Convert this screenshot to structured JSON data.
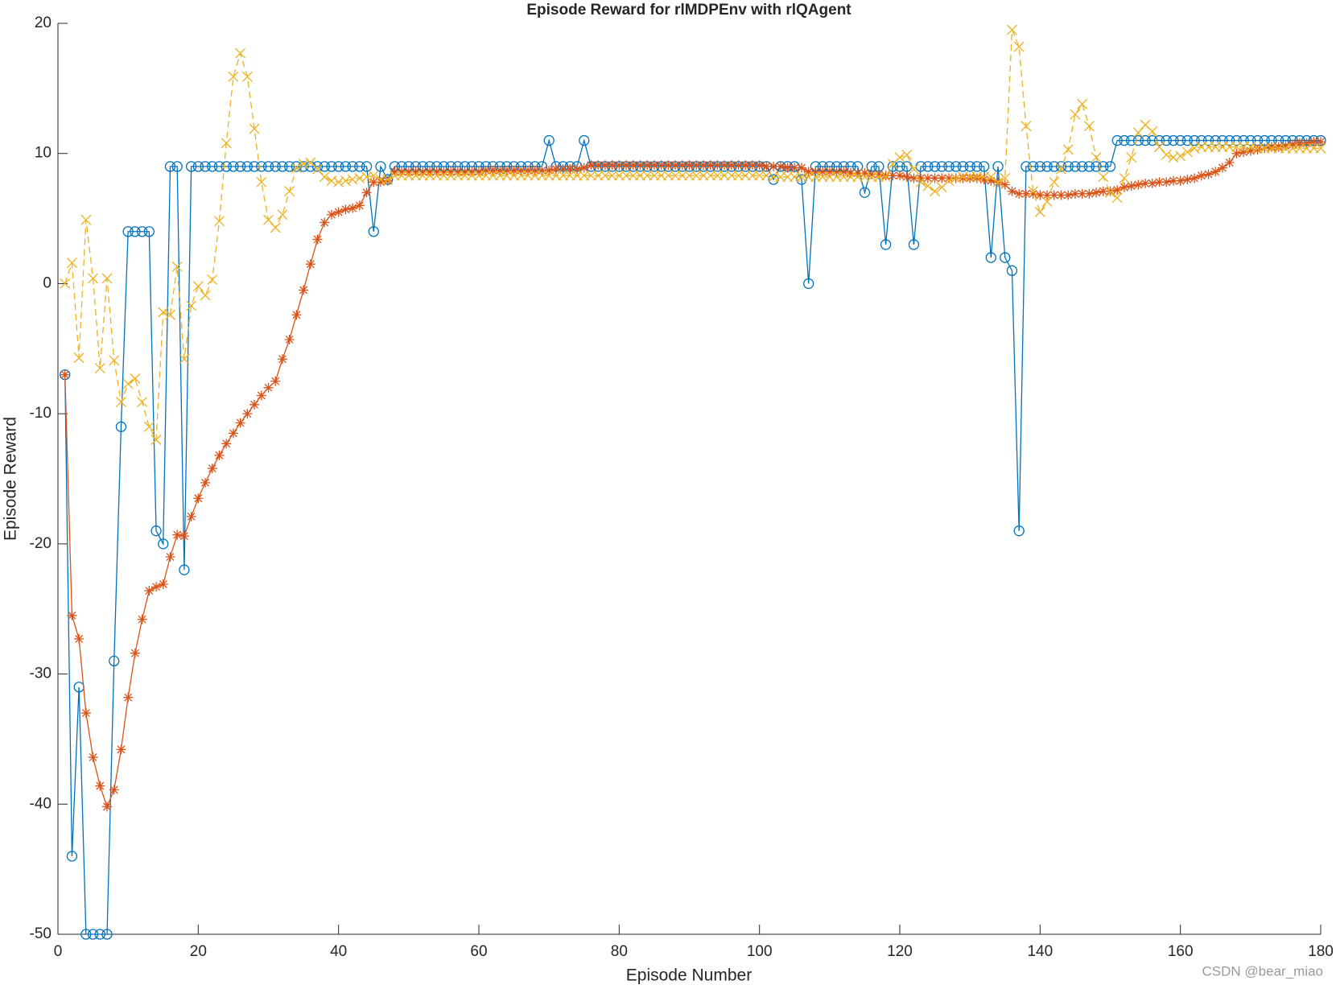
{
  "chart_data": {
    "type": "line",
    "title": "Episode Reward for rlMDPEnv with rlQAgent",
    "x_label": "Episode Number",
    "y_label": "Episode Reward",
    "watermark": "CSDN @bear_miao",
    "xlim": [
      0,
      180
    ],
    "xticks": [
      0,
      20,
      40,
      60,
      80,
      100,
      120,
      140,
      160,
      180
    ],
    "ylim": [
      -50,
      20
    ],
    "yticks": [
      -50,
      -40,
      -30,
      -20,
      -10,
      0,
      10,
      20
    ],
    "x": [
      1,
      2,
      3,
      4,
      5,
      6,
      7,
      8,
      9,
      10,
      11,
      12,
      13,
      14,
      15,
      16,
      17,
      18,
      19,
      20,
      21,
      22,
      23,
      24,
      25,
      26,
      27,
      28,
      29,
      30,
      31,
      32,
      33,
      34,
      35,
      36,
      37,
      38,
      39,
      40,
      41,
      42,
      43,
      44,
      45,
      46,
      47,
      48,
      49,
      50,
      51,
      52,
      53,
      54,
      55,
      56,
      57,
      58,
      59,
      60,
      61,
      62,
      63,
      64,
      65,
      66,
      67,
      68,
      69,
      70,
      71,
      72,
      73,
      74,
      75,
      76,
      77,
      78,
      79,
      80,
      81,
      82,
      83,
      84,
      85,
      86,
      87,
      88,
      89,
      90,
      91,
      92,
      93,
      94,
      95,
      96,
      97,
      98,
      99,
      100,
      101,
      102,
      103,
      104,
      105,
      106,
      107,
      108,
      109,
      110,
      111,
      112,
      113,
      114,
      115,
      116,
      117,
      118,
      119,
      120,
      121,
      122,
      123,
      124,
      125,
      126,
      127,
      128,
      129,
      130,
      131,
      132,
      133,
      134,
      135,
      136,
      137,
      138,
      139,
      140,
      141,
      142,
      143,
      144,
      145,
      146,
      147,
      148,
      149,
      150,
      151,
      152,
      153,
      154,
      155,
      156,
      157,
      158,
      159,
      160,
      161,
      162,
      163,
      164,
      165,
      166,
      167,
      168,
      169,
      170,
      171,
      172,
      173,
      174,
      175,
      176,
      177,
      178,
      179,
      180
    ],
    "series": [
      {
        "color": "#0072BD",
        "marker": "o",
        "dash": false,
        "values": [
          -7,
          -44,
          -31,
          -50,
          -50,
          -50,
          -50,
          -29,
          -11,
          4,
          4,
          4,
          4,
          -19,
          -20,
          9,
          9,
          -22,
          9,
          9,
          9,
          9,
          9,
          9,
          9,
          9,
          9,
          9,
          9,
          9,
          9,
          9,
          9,
          9,
          9,
          9,
          9,
          9,
          9,
          9,
          9,
          9,
          9,
          9,
          4,
          9,
          8,
          9,
          9,
          9,
          9,
          9,
          9,
          9,
          9,
          9,
          9,
          9,
          9,
          9,
          9,
          9,
          9,
          9,
          9,
          9,
          9,
          9,
          9,
          11,
          9,
          9,
          9,
          9,
          11,
          9,
          9,
          9,
          9,
          9,
          9,
          9,
          9,
          9,
          9,
          9,
          9,
          9,
          9,
          9,
          9,
          9,
          9,
          9,
          9,
          9,
          9,
          9,
          9,
          9,
          9,
          8,
          9,
          9,
          9,
          8,
          0,
          9,
          9,
          9,
          9,
          9,
          9,
          9,
          7,
          9,
          9,
          3,
          9,
          9,
          9,
          3,
          9,
          9,
          9,
          9,
          9,
          9,
          9,
          9,
          9,
          9,
          2,
          9,
          2,
          1,
          -19,
          9,
          9,
          9,
          9,
          9,
          9,
          9,
          9,
          9,
          9,
          9,
          9,
          9,
          11,
          11,
          11,
          11,
          11,
          11,
          11,
          11,
          11,
          11,
          11,
          11,
          11,
          11,
          11,
          11,
          11,
          11,
          11,
          11,
          11,
          11,
          11,
          11,
          11,
          11,
          11,
          11,
          11,
          11
        ]
      },
      {
        "color": "#D95319",
        "marker": "*",
        "dash": false,
        "values": [
          -7,
          -25.5,
          -27.3,
          -33,
          -36.4,
          -38.6,
          -40.2,
          -38.9,
          -35.8,
          -31.8,
          -28.4,
          -25.8,
          -23.6,
          -23.3,
          -23.1,
          -21,
          -19.3,
          -19.4,
          -17.9,
          -16.5,
          -15.3,
          -14.2,
          -13.2,
          -12.3,
          -11.5,
          -10.7,
          -10,
          -9.3,
          -8.6,
          -8,
          -7.5,
          -5.8,
          -4.3,
          -2.4,
          -0.5,
          1.5,
          3.4,
          4.7,
          5.3,
          5.5,
          5.7,
          5.8,
          6,
          7,
          7.8,
          7.8,
          7.9,
          8.6,
          8.6,
          8.6,
          8.6,
          8.6,
          8.6,
          8.6,
          8.6,
          8.6,
          8.6,
          8.6,
          8.6,
          8.6,
          8.7,
          8.7,
          8.7,
          8.7,
          8.7,
          8.7,
          8.7,
          8.7,
          8.7,
          8.7,
          8.8,
          8.8,
          8.8,
          8.8,
          8.9,
          9.1,
          9.1,
          9.1,
          9.1,
          9.1,
          9.1,
          9.1,
          9.1,
          9.1,
          9.1,
          9.1,
          9.1,
          9.1,
          9.1,
          9.1,
          9.1,
          9.1,
          9.1,
          9.1,
          9.1,
          9.1,
          9.1,
          9.1,
          9.1,
          9.1,
          9.0,
          9.0,
          9.0,
          8.9,
          8.9,
          8.9,
          8.6,
          8.6,
          8.6,
          8.6,
          8.6,
          8.6,
          8.5,
          8.5,
          8.5,
          8.4,
          8.4,
          8.3,
          8.3,
          8.3,
          8.2,
          8.1,
          8.1,
          8.1,
          8.1,
          8.1,
          8.1,
          8.1,
          8.1,
          8.1,
          8.1,
          8.0,
          7.9,
          7.8,
          7.6,
          7.1,
          6.9,
          6.9,
          6.9,
          6.8,
          6.8,
          6.8,
          6.8,
          6.8,
          6.9,
          6.9,
          6.9,
          7.0,
          7.1,
          7.1,
          7.2,
          7.4,
          7.5,
          7.6,
          7.7,
          7.7,
          7.8,
          7.8,
          7.9,
          7.9,
          8.0,
          8.1,
          8.3,
          8.4,
          8.6,
          8.9,
          9.3,
          10.0,
          10.1,
          10.2,
          10.3,
          10.4,
          10.5,
          10.5,
          10.6,
          10.7,
          10.8,
          10.8,
          10.9,
          10.9
        ]
      },
      {
        "color": "#EDB120",
        "marker": "x",
        "dash": true,
        "values": [
          0,
          1.6,
          -5.7,
          4.9,
          0.4,
          -6.5,
          0.4,
          -5.9,
          -9.1,
          -7.7,
          -7.3,
          -9.1,
          -11,
          -12,
          -2.2,
          -2.4,
          1.3,
          -5.8,
          -1.7,
          -0.2,
          -0.9,
          0.3,
          4.8,
          10.8,
          15.9,
          17.7,
          15.9,
          11.9,
          7.8,
          4.9,
          4.3,
          5.3,
          7.1,
          8.9,
          9.2,
          9.3,
          8.8,
          8.2,
          7.9,
          7.8,
          7.9,
          8,
          8.1,
          8.2,
          8.3,
          8.0,
          8.0,
          8.3,
          8.3,
          8.3,
          8.3,
          8.3,
          8.3,
          8.3,
          8.3,
          8.3,
          8.3,
          8.3,
          8.3,
          8.3,
          8.3,
          8.3,
          8.3,
          8.3,
          8.3,
          8.3,
          8.3,
          8.3,
          8.3,
          8.3,
          8.3,
          8.3,
          8.3,
          8.3,
          8.3,
          8.3,
          8.3,
          8.3,
          8.3,
          8.3,
          8.3,
          8.3,
          8.3,
          8.3,
          8.3,
          8.3,
          8.3,
          8.3,
          8.3,
          8.3,
          8.3,
          8.3,
          8.3,
          8.3,
          8.3,
          8.3,
          8.3,
          8.3,
          8.3,
          8.3,
          8.3,
          8.2,
          8.2,
          8.2,
          8.2,
          8.2,
          8.2,
          8.2,
          8.2,
          8.2,
          8.2,
          8.2,
          8.2,
          8.2,
          8.2,
          8.2,
          8.2,
          8.2,
          9.2,
          9.7,
          9.9,
          8.8,
          7.8,
          7.5,
          7.1,
          7.4,
          7.9,
          8.1,
          8.2,
          8.2,
          8.2,
          8.2,
          8.2,
          7.8,
          8.1,
          19.5,
          18.2,
          12.1,
          7.1,
          5.5,
          6.3,
          7.8,
          8.8,
          10.3,
          13,
          13.8,
          12.1,
          9.7,
          8.2,
          7,
          6.6,
          8.1,
          9.7,
          11.6,
          12.2,
          11.7,
          10.5,
          9.9,
          9.7,
          9.8,
          10.1,
          10.4,
          10.5,
          10.5,
          10.5,
          10.5,
          10.5,
          10.5,
          10.5,
          10.5,
          10.4,
          10.4,
          10.4,
          10.4,
          10.4,
          10.4,
          10.4,
          10.4,
          10.4,
          10.4
        ]
      }
    ]
  }
}
